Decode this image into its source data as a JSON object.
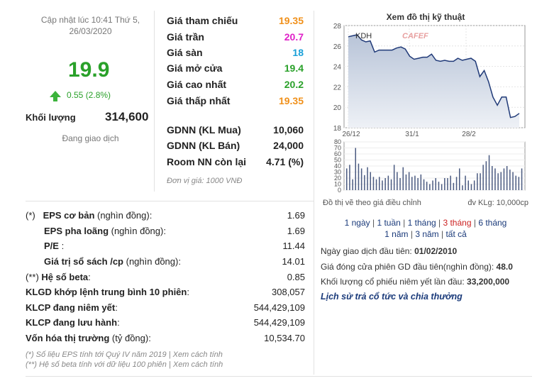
{
  "header": {
    "updated_line1": "Cập nhật lúc 10:41 Thứ 5,",
    "updated_line2": "26/03/2020",
    "price": "19.9",
    "change": "0.55 (2.8%)",
    "volume_label": "Khối lượng",
    "volume_value": "314,600",
    "trading_status": "Đang giao dịch"
  },
  "prices": [
    {
      "label": "Giá tham chiếu",
      "value": "19.35",
      "color": "#f0901a"
    },
    {
      "label": "Giá trần",
      "value": "20.7",
      "color": "#e020c8"
    },
    {
      "label": "Giá sàn",
      "value": "18",
      "color": "#1aa0d8"
    },
    {
      "label": "Giá mở cửa",
      "value": "19.4",
      "color": "#2aa12a"
    },
    {
      "label": "Giá cao nhất",
      "value": "20.2",
      "color": "#2aa12a"
    },
    {
      "label": "Giá thấp nhất",
      "value": "19.35",
      "color": "#f0901a"
    }
  ],
  "foreign": [
    {
      "label": "GDNN (KL Mua)",
      "value": "10,060"
    },
    {
      "label": "GDNN (KL Bán)",
      "value": "24,000"
    },
    {
      "label": "Room NN còn lại",
      "value": "4.71 (%)"
    }
  ],
  "unit_note": "Đơn vị giá: 1000 VNĐ",
  "stats": [
    {
      "prefix": "(*)",
      "label": "EPS cơ bản",
      "note": " (nghìn đồng):",
      "value": "1.69"
    },
    {
      "prefix": "",
      "label": "EPS pha loãng",
      "note": " (nghìn đồng):",
      "value": "1.69"
    },
    {
      "prefix": "",
      "label": "P/E",
      "note": " :",
      "value": "11.44"
    },
    {
      "prefix": "",
      "label": "Giá trị sổ sách /cp",
      "note": " (nghìn đồng):",
      "value": "14.01"
    },
    {
      "prefix": "(**)",
      "label": "Hệ số beta",
      "note": ":",
      "value": "0.85"
    },
    {
      "prefix": "",
      "label": "KLGD khớp lệnh trung bình 10 phiên",
      "note": ":",
      "value": "308,057"
    },
    {
      "prefix": "",
      "label": "KLCP đang niêm yết",
      "note": ":",
      "value": "544,429,109"
    },
    {
      "prefix": "",
      "label": "KLCP đang lưu hành",
      "note": ":",
      "value": "544,429,109"
    },
    {
      "prefix": "",
      "label": "Vốn hóa thị trường",
      "note": " (tỷ đồng):",
      "value": "10,534.70"
    }
  ],
  "footnotes": [
    "(*) Số liệu EPS tính tới Quý IV năm 2019 | Xem cách tính",
    "(**) Hệ số beta tính với dữ liệu 100 phiên | Xem cách tính"
  ],
  "chart_panel": {
    "title": "Xem đồ thị kỹ thuật",
    "ticker": "KDH",
    "watermark": "CAFEF",
    "adjusted_note": "Đồ thị vẽ theo giá điều chỉnh",
    "volume_unit": "đv KLg: 10,000cp",
    "periods_line1": [
      "1 ngày",
      "1 tuần",
      "1 tháng",
      "3 tháng",
      "6 tháng"
    ],
    "periods_line2": [
      "1 năm",
      "3 năm",
      "tất cả"
    ],
    "active_period": "3 tháng",
    "first_trade_label": "Ngày giao dịch đầu tiên:",
    "first_trade_value": "01/02/2010",
    "first_close_label": "Giá đóng cửa phiên GD đầu tiên(nghìn đồng):",
    "first_close_value": "48.0",
    "first_volume_label": "Khối lượng cổ phiếu niêm yết lần đầu:",
    "first_volume_value": "33,200,000",
    "history_link": "Lịch sử trả cổ tức và chia thưởng"
  },
  "chart_data": [
    {
      "type": "area",
      "x_tick_labels": [
        "26/12",
        "31/1",
        "28/2"
      ],
      "y_ticks": [
        18,
        20,
        22,
        24,
        26,
        28
      ],
      "ylim": [
        18,
        28
      ],
      "series": [
        {
          "values": [
            26.9,
            27.0,
            27.1,
            26.6,
            26.4,
            26.5,
            25.4,
            25.6,
            25.6,
            25.6,
            25.6,
            25.8,
            25.9,
            25.7,
            25.0,
            24.7,
            24.8,
            24.9,
            24.9,
            25.2,
            24.6,
            24.5,
            24.6,
            24.5,
            24.5,
            24.8,
            24.6,
            24.7,
            24.8,
            24.5,
            23.0,
            23.6,
            22.5,
            21.0,
            20.2,
            21.0,
            21.0,
            19.0,
            19.1,
            19.4
          ]
        }
      ],
      "grid": true
    },
    {
      "type": "bar",
      "y_ticks": [
        0,
        10,
        20,
        30,
        40,
        50,
        60,
        70,
        80
      ],
      "ylim": [
        0,
        80
      ],
      "values": [
        36,
        42,
        18,
        70,
        44,
        36,
        25,
        38,
        30,
        22,
        18,
        22,
        16,
        20,
        24,
        18,
        42,
        30,
        20,
        38,
        26,
        30,
        22,
        24,
        20,
        26,
        18,
        14,
        10,
        16,
        20,
        14,
        10,
        20,
        20,
        24,
        12,
        22,
        36,
        8,
        24,
        16,
        10,
        16,
        28,
        28,
        42,
        48,
        58,
        40,
        36,
        28,
        30,
        36,
        40,
        34,
        30,
        24,
        22,
        36
      ]
    }
  ]
}
